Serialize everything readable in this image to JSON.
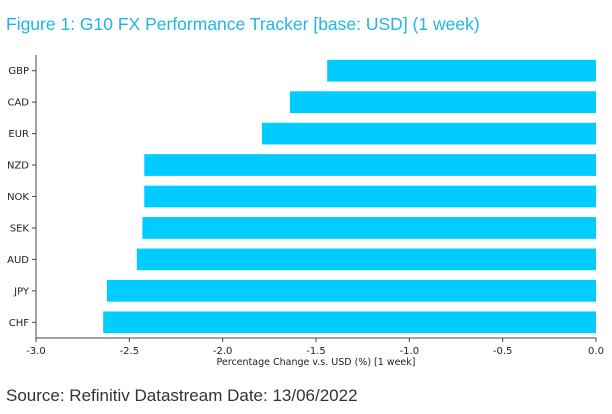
{
  "title": "Figure 1: G10 FX Performance Tracker [base: USD] (1 week)",
  "source": "Source: Refinitiv Datastream Date: 13/06/2022",
  "colors": {
    "bar": "#00ccff",
    "title": "#1fb6e6",
    "axis": "#444444"
  },
  "chart_data": {
    "type": "bar",
    "orientation": "horizontal",
    "categories": [
      "GBP",
      "CAD",
      "EUR",
      "NZD",
      "NOK",
      "SEK",
      "AUD",
      "JPY",
      "CHF"
    ],
    "values": [
      -1.44,
      -1.64,
      -1.79,
      -2.42,
      -2.42,
      -2.43,
      -2.46,
      -2.62,
      -2.64
    ],
    "xlabel": "Percentage Change v.s. USD (%) [1 week]",
    "ylabel": "",
    "xlim": [
      -3.0,
      0.0
    ],
    "xticks": [
      -3.0,
      -2.5,
      -2.0,
      -1.5,
      -1.0,
      -0.5,
      0.0
    ],
    "xtick_labels": [
      "-3.0",
      "-2.5",
      "-2.0",
      "-1.5",
      "-1.0",
      "-0.5",
      "0.0"
    ],
    "grid": false,
    "legend": "none"
  }
}
